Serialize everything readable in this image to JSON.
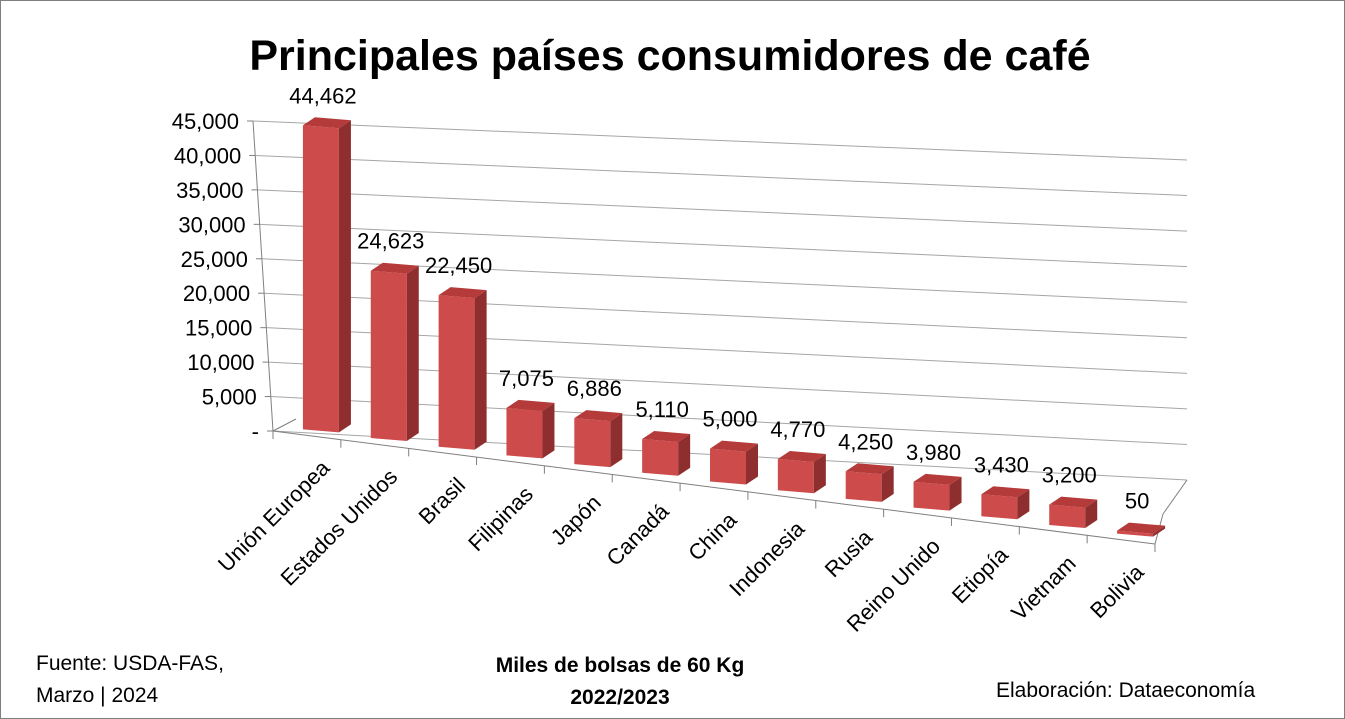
{
  "chart_data": {
    "type": "bar",
    "title": "Principales países consumidores de café",
    "categories": [
      "Unión Europea",
      "Estados Unidos",
      "Brasil",
      "Filipinas",
      "Japón",
      "Canadá",
      "China",
      "Indonesia",
      "Rusia",
      "Reino Unido",
      "Etiopía",
      "Vietnam",
      "Bolivia"
    ],
    "values": [
      44462,
      24623,
      22450,
      7075,
      6886,
      5110,
      5000,
      4770,
      4250,
      3980,
      3430,
      3200,
      50
    ],
    "data_labels": [
      "44,462",
      "24,623",
      "22,450",
      "7,075",
      "6,886",
      "5,110",
      "5,000",
      "4,770",
      "4,250",
      "3,980",
      "3,430",
      "3,200",
      "50"
    ],
    "ylim": [
      0,
      45000
    ],
    "y_ticks": [
      0,
      5000,
      10000,
      15000,
      20000,
      25000,
      30000,
      35000,
      40000,
      45000
    ],
    "y_tick_labels": [
      "-",
      "5,000",
      "10,000",
      "15,000",
      "20,000",
      "25,000",
      "30,000",
      "35,000",
      "40,000",
      "45,000"
    ],
    "grid": true,
    "legend": "none",
    "three_d": true,
    "bar_color": "#cd4b4b",
    "bar_side_color": "#8f2e2e",
    "bar_top_color": "#b53a3a"
  },
  "footer": {
    "source_line1": "Fuente:  USDA-FAS,",
    "source_line2": "Marzo | 2024",
    "unit_line1": "Miles de bolsas de 60 Kg",
    "unit_line2": "2022/2023",
    "credit": "Elaboración: Dataeconomía"
  }
}
